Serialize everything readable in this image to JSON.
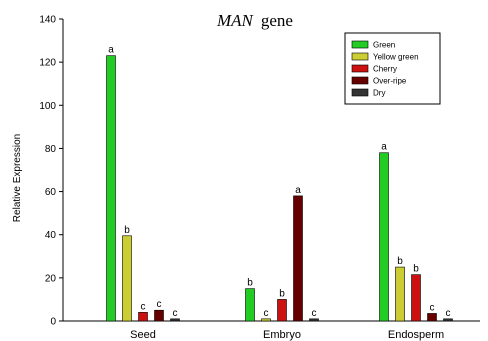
{
  "chart_data": {
    "type": "bar",
    "title": {
      "gene": "MAN",
      "suffix": "gene"
    },
    "ylabel": "Relative Expression",
    "xlabel": "",
    "ylim": [
      0,
      140
    ],
    "yticks": [
      0,
      20,
      40,
      60,
      80,
      100,
      120,
      140
    ],
    "categories": [
      "Seed",
      "Embryo",
      "Endosperm"
    ],
    "legend_position": "top-right",
    "series": [
      {
        "name": "Green",
        "color": "#22cc22",
        "values": [
          123,
          15,
          78
        ],
        "labels": [
          "a",
          "b",
          "a"
        ]
      },
      {
        "name": "Yellow green",
        "color": "#cccc33",
        "values": [
          39.5,
          1,
          25
        ],
        "labels": [
          "b",
          "c",
          "b"
        ]
      },
      {
        "name": "Cherry",
        "color": "#cc1111",
        "values": [
          4,
          10,
          21.5
        ],
        "labels": [
          "c",
          "b",
          "b"
        ]
      },
      {
        "name": "Over-ripe",
        "color": "#660000",
        "values": [
          5,
          58,
          3.5
        ],
        "labels": [
          "c",
          "a",
          "c"
        ]
      },
      {
        "name": "Dry",
        "color": "#333333",
        "values": [
          1,
          1,
          1
        ],
        "labels": [
          "c",
          "c",
          "c"
        ]
      }
    ]
  }
}
